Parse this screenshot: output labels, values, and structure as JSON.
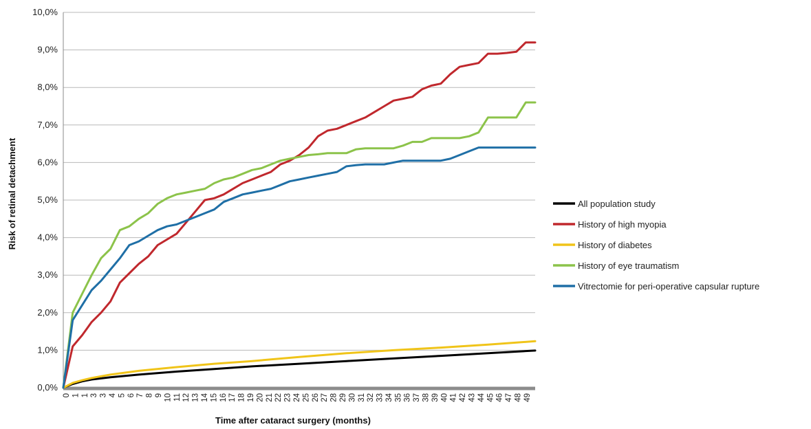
{
  "chart_data": {
    "type": "line",
    "title": "",
    "xlabel": "Time after cataract surgery (months)",
    "ylabel": "Risk of retinal detachment",
    "xlim": [
      0,
      50
    ],
    "ylim": [
      0,
      10
    ],
    "y_ticks": [
      "0,0%",
      "1,0%",
      "2,0%",
      "3,0%",
      "4,0%",
      "5,0%",
      "6,0%",
      "7,0%",
      "8,0%",
      "9,0%",
      "10,0%"
    ],
    "x_ticks": [
      "0",
      "1",
      "1",
      "3",
      "3",
      "4",
      "5",
      "6",
      "7",
      "8",
      "9",
      "10",
      "11",
      "12",
      "13",
      "14",
      "15",
      "16",
      "17",
      "18",
      "19",
      "20",
      "21",
      "22",
      "23",
      "24",
      "25",
      "26",
      "27",
      "28",
      "29",
      "30",
      "31",
      "32",
      "33",
      "34",
      "35",
      "36",
      "37",
      "38",
      "39",
      "40",
      "41",
      "42",
      "43",
      "44",
      "45",
      "46",
      "47",
      "48",
      "49"
    ],
    "grid": "horizontal",
    "legend_position": "right",
    "series": [
      {
        "name": "All population study",
        "color": "#000000",
        "x": [
          0,
          1,
          2,
          3,
          5,
          8,
          12,
          16,
          20,
          25,
          30,
          35,
          40,
          45,
          50
        ],
        "y": [
          0,
          0.1,
          0.17,
          0.22,
          0.28,
          0.35,
          0.43,
          0.5,
          0.57,
          0.64,
          0.71,
          0.78,
          0.85,
          0.92,
          0.99
        ]
      },
      {
        "name": "History of high myopia",
        "color": "#c0282d",
        "x": [
          0,
          1,
          2,
          3,
          4,
          5,
          6,
          7,
          8,
          9,
          10,
          12,
          13,
          14,
          15,
          16,
          17,
          18,
          19,
          20,
          21,
          22,
          23,
          24,
          25,
          26,
          27,
          28,
          29,
          30,
          31,
          32,
          33,
          34,
          35,
          36,
          37,
          38,
          39,
          40,
          41,
          42,
          43,
          44,
          45,
          46,
          47,
          48,
          49,
          50
        ],
        "y": [
          0,
          1.1,
          1.4,
          1.75,
          2.0,
          2.3,
          2.8,
          3.05,
          3.3,
          3.5,
          3.8,
          4.1,
          4.4,
          4.7,
          5.0,
          5.05,
          5.15,
          5.3,
          5.45,
          5.55,
          5.65,
          5.75,
          5.95,
          6.05,
          6.2,
          6.4,
          6.7,
          6.85,
          6.9,
          7.0,
          7.1,
          7.2,
          7.35,
          7.5,
          7.65,
          7.7,
          7.75,
          7.95,
          8.05,
          8.1,
          8.35,
          8.55,
          8.6,
          8.65,
          8.9,
          8.9,
          8.92,
          8.95,
          9.2,
          9.2
        ]
      },
      {
        "name": "History of diabetes",
        "color": "#f0c419",
        "x": [
          0,
          1,
          2,
          3,
          5,
          8,
          12,
          16,
          20,
          25,
          30,
          35,
          40,
          45,
          50
        ],
        "y": [
          0,
          0.13,
          0.2,
          0.26,
          0.35,
          0.45,
          0.55,
          0.64,
          0.71,
          0.82,
          0.92,
          1.0,
          1.07,
          1.15,
          1.24
        ]
      },
      {
        "name": "History of eye traumatism",
        "color": "#8cc34a",
        "x": [
          0,
          1,
          2,
          3,
          4,
          5,
          6,
          7,
          8,
          9,
          10,
          11,
          12,
          13,
          14,
          15,
          16,
          17,
          18,
          19,
          20,
          21,
          22,
          23,
          24,
          25,
          26,
          27,
          28,
          29,
          30,
          31,
          32,
          33,
          34,
          35,
          36,
          37,
          38,
          39,
          40,
          41,
          42,
          43,
          44,
          45,
          46,
          47,
          48,
          49,
          50
        ],
        "y": [
          0,
          2.0,
          2.5,
          3.0,
          3.45,
          3.7,
          4.2,
          4.3,
          4.5,
          4.65,
          4.9,
          5.05,
          5.15,
          5.2,
          5.25,
          5.3,
          5.45,
          5.55,
          5.6,
          5.7,
          5.8,
          5.85,
          5.95,
          6.05,
          6.1,
          6.15,
          6.2,
          6.22,
          6.25,
          6.25,
          6.25,
          6.35,
          6.38,
          6.38,
          6.38,
          6.38,
          6.45,
          6.55,
          6.55,
          6.65,
          6.65,
          6.65,
          6.65,
          6.7,
          6.8,
          7.2,
          7.2,
          7.2,
          7.2,
          7.6,
          7.6
        ]
      },
      {
        "name": "Vitrectomie for peri-operative capsular rupture",
        "color": "#1f6fa6",
        "x": [
          0,
          1,
          2,
          3,
          4,
          5,
          6,
          7,
          8,
          9,
          10,
          11,
          12,
          13,
          14,
          15,
          16,
          17,
          18,
          19,
          20,
          21,
          22,
          23,
          24,
          25,
          26,
          27,
          28,
          29,
          30,
          31,
          32,
          33,
          34,
          35,
          36,
          37,
          38,
          39,
          40,
          41,
          42,
          43,
          44,
          45,
          46,
          47,
          48,
          49,
          50
        ],
        "y": [
          0,
          1.8,
          2.2,
          2.6,
          2.85,
          3.15,
          3.45,
          3.8,
          3.9,
          4.05,
          4.2,
          4.3,
          4.35,
          4.45,
          4.55,
          4.65,
          4.75,
          4.95,
          5.05,
          5.15,
          5.2,
          5.25,
          5.3,
          5.4,
          5.5,
          5.55,
          5.6,
          5.65,
          5.7,
          5.75,
          5.9,
          5.93,
          5.95,
          5.95,
          5.95,
          6.0,
          6.05,
          6.05,
          6.05,
          6.05,
          6.05,
          6.1,
          6.2,
          6.3,
          6.4,
          6.4,
          6.4,
          6.4,
          6.4,
          6.4,
          6.4
        ]
      }
    ]
  }
}
